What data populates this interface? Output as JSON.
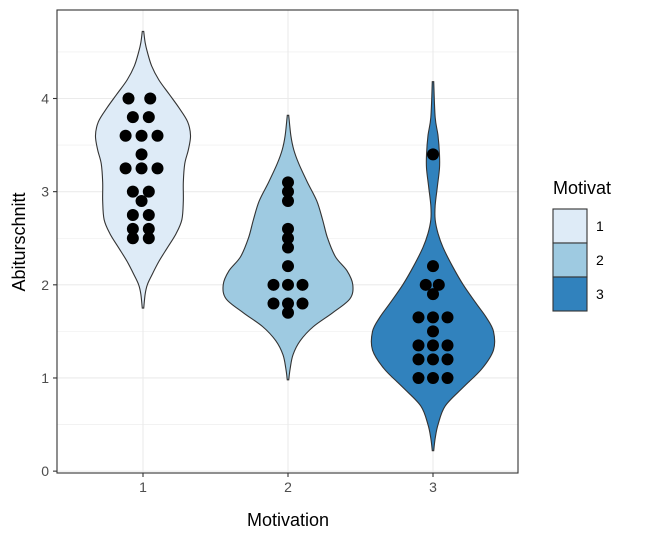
{
  "chart_data": {
    "type": "violin",
    "xlabel": "Motivation",
    "ylabel": "Abiturschnitt",
    "categories": [
      "1",
      "2",
      "3"
    ],
    "ylim": [
      -0.02,
      4.95
    ],
    "yticks": [
      0,
      1,
      2,
      3,
      4
    ],
    "grid": true,
    "legend": {
      "title": "Motivat",
      "position": "right",
      "entries": [
        "1",
        "2",
        "3"
      ]
    },
    "colors": {
      "1": "#deebf7",
      "2": "#9ecae1",
      "3": "#3182bd",
      "points": "#000000",
      "outline": "#333333",
      "grid": "#ebebeb"
    },
    "violins": [
      {
        "category": "1",
        "profile": [
          [
            1.75,
            0.01
          ],
          [
            1.9,
            0.03
          ],
          [
            2.0,
            0.06
          ],
          [
            2.1,
            0.12
          ],
          [
            2.25,
            0.22
          ],
          [
            2.4,
            0.34
          ],
          [
            2.55,
            0.46
          ],
          [
            2.7,
            0.54
          ],
          [
            2.9,
            0.56
          ],
          [
            3.1,
            0.56
          ],
          [
            3.3,
            0.58
          ],
          [
            3.45,
            0.63
          ],
          [
            3.6,
            0.66
          ],
          [
            3.75,
            0.62
          ],
          [
            3.9,
            0.5
          ],
          [
            4.05,
            0.36
          ],
          [
            4.2,
            0.22
          ],
          [
            4.35,
            0.12
          ],
          [
            4.5,
            0.06
          ],
          [
            4.6,
            0.03
          ],
          [
            4.72,
            0.01
          ]
        ]
      },
      {
        "category": "2",
        "profile": [
          [
            0.98,
            0.01
          ],
          [
            1.1,
            0.03
          ],
          [
            1.25,
            0.07
          ],
          [
            1.4,
            0.17
          ],
          [
            1.55,
            0.35
          ],
          [
            1.7,
            0.62
          ],
          [
            1.85,
            0.86
          ],
          [
            2.0,
            0.9
          ],
          [
            2.15,
            0.82
          ],
          [
            2.3,
            0.66
          ],
          [
            2.5,
            0.55
          ],
          [
            2.7,
            0.48
          ],
          [
            2.9,
            0.4
          ],
          [
            3.1,
            0.27
          ],
          [
            3.3,
            0.15
          ],
          [
            3.45,
            0.08
          ],
          [
            3.6,
            0.04
          ],
          [
            3.82,
            0.01
          ]
        ]
      },
      {
        "category": "3",
        "profile": [
          [
            0.22,
            0.01
          ],
          [
            0.35,
            0.03
          ],
          [
            0.5,
            0.07
          ],
          [
            0.7,
            0.17
          ],
          [
            0.9,
            0.42
          ],
          [
            1.1,
            0.68
          ],
          [
            1.3,
            0.84
          ],
          [
            1.5,
            0.84
          ],
          [
            1.65,
            0.74
          ],
          [
            1.8,
            0.6
          ],
          [
            2.0,
            0.42
          ],
          [
            2.2,
            0.27
          ],
          [
            2.4,
            0.14
          ],
          [
            2.55,
            0.07
          ],
          [
            2.7,
            0.03
          ],
          [
            2.85,
            0.03
          ],
          [
            3.05,
            0.06
          ],
          [
            3.25,
            0.09
          ],
          [
            3.4,
            0.09
          ],
          [
            3.6,
            0.07
          ],
          [
            3.8,
            0.03
          ],
          [
            4.18,
            0.01
          ]
        ]
      }
    ],
    "points": [
      {
        "category": "1",
        "y": 4.0,
        "offset": -0.1
      },
      {
        "category": "1",
        "y": 4.0,
        "offset": 0.05
      },
      {
        "category": "1",
        "y": 3.8,
        "offset": -0.07
      },
      {
        "category": "1",
        "y": 3.8,
        "offset": 0.04
      },
      {
        "category": "1",
        "y": 3.6,
        "offset": -0.12
      },
      {
        "category": "1",
        "y": 3.6,
        "offset": -0.01
      },
      {
        "category": "1",
        "y": 3.6,
        "offset": 0.1
      },
      {
        "category": "1",
        "y": 3.4,
        "offset": -0.01
      },
      {
        "category": "1",
        "y": 3.25,
        "offset": -0.12
      },
      {
        "category": "1",
        "y": 3.25,
        "offset": -0.01
      },
      {
        "category": "1",
        "y": 3.25,
        "offset": 0.1
      },
      {
        "category": "1",
        "y": 3.0,
        "offset": -0.07
      },
      {
        "category": "1",
        "y": 3.0,
        "offset": 0.04
      },
      {
        "category": "1",
        "y": 2.9,
        "offset": -0.01
      },
      {
        "category": "1",
        "y": 2.75,
        "offset": -0.07
      },
      {
        "category": "1",
        "y": 2.75,
        "offset": 0.04
      },
      {
        "category": "1",
        "y": 2.6,
        "offset": -0.07
      },
      {
        "category": "1",
        "y": 2.6,
        "offset": 0.04
      },
      {
        "category": "1",
        "y": 2.5,
        "offset": -0.07
      },
      {
        "category": "1",
        "y": 2.5,
        "offset": 0.04
      },
      {
        "category": "2",
        "y": 3.1,
        "offset": 0.0
      },
      {
        "category": "2",
        "y": 3.0,
        "offset": 0.0
      },
      {
        "category": "2",
        "y": 2.9,
        "offset": 0.0
      },
      {
        "category": "2",
        "y": 2.6,
        "offset": 0.0
      },
      {
        "category": "2",
        "y": 2.5,
        "offset": 0.0
      },
      {
        "category": "2",
        "y": 2.4,
        "offset": 0.0
      },
      {
        "category": "2",
        "y": 2.2,
        "offset": 0.0
      },
      {
        "category": "2",
        "y": 2.0,
        "offset": -0.1
      },
      {
        "category": "2",
        "y": 2.0,
        "offset": 0.0
      },
      {
        "category": "2",
        "y": 2.0,
        "offset": 0.1
      },
      {
        "category": "2",
        "y": 1.8,
        "offset": -0.1
      },
      {
        "category": "2",
        "y": 1.8,
        "offset": 0.0
      },
      {
        "category": "2",
        "y": 1.8,
        "offset": 0.1
      },
      {
        "category": "2",
        "y": 1.7,
        "offset": 0.0
      },
      {
        "category": "3",
        "y": 3.4,
        "offset": 0.0
      },
      {
        "category": "3",
        "y": 2.2,
        "offset": 0.0
      },
      {
        "category": "3",
        "y": 2.0,
        "offset": -0.05
      },
      {
        "category": "3",
        "y": 2.0,
        "offset": 0.04
      },
      {
        "category": "3",
        "y": 1.9,
        "offset": 0.0
      },
      {
        "category": "3",
        "y": 1.65,
        "offset": -0.1
      },
      {
        "category": "3",
        "y": 1.65,
        "offset": 0.0
      },
      {
        "category": "3",
        "y": 1.65,
        "offset": 0.1
      },
      {
        "category": "3",
        "y": 1.5,
        "offset": 0.0
      },
      {
        "category": "3",
        "y": 1.35,
        "offset": -0.1
      },
      {
        "category": "3",
        "y": 1.35,
        "offset": 0.0
      },
      {
        "category": "3",
        "y": 1.35,
        "offset": 0.1
      },
      {
        "category": "3",
        "y": 1.2,
        "offset": -0.1
      },
      {
        "category": "3",
        "y": 1.2,
        "offset": 0.0
      },
      {
        "category": "3",
        "y": 1.2,
        "offset": 0.1
      },
      {
        "category": "3",
        "y": 1.0,
        "offset": -0.1
      },
      {
        "category": "3",
        "y": 1.0,
        "offset": 0.0
      },
      {
        "category": "3",
        "y": 1.0,
        "offset": 0.1
      }
    ]
  }
}
